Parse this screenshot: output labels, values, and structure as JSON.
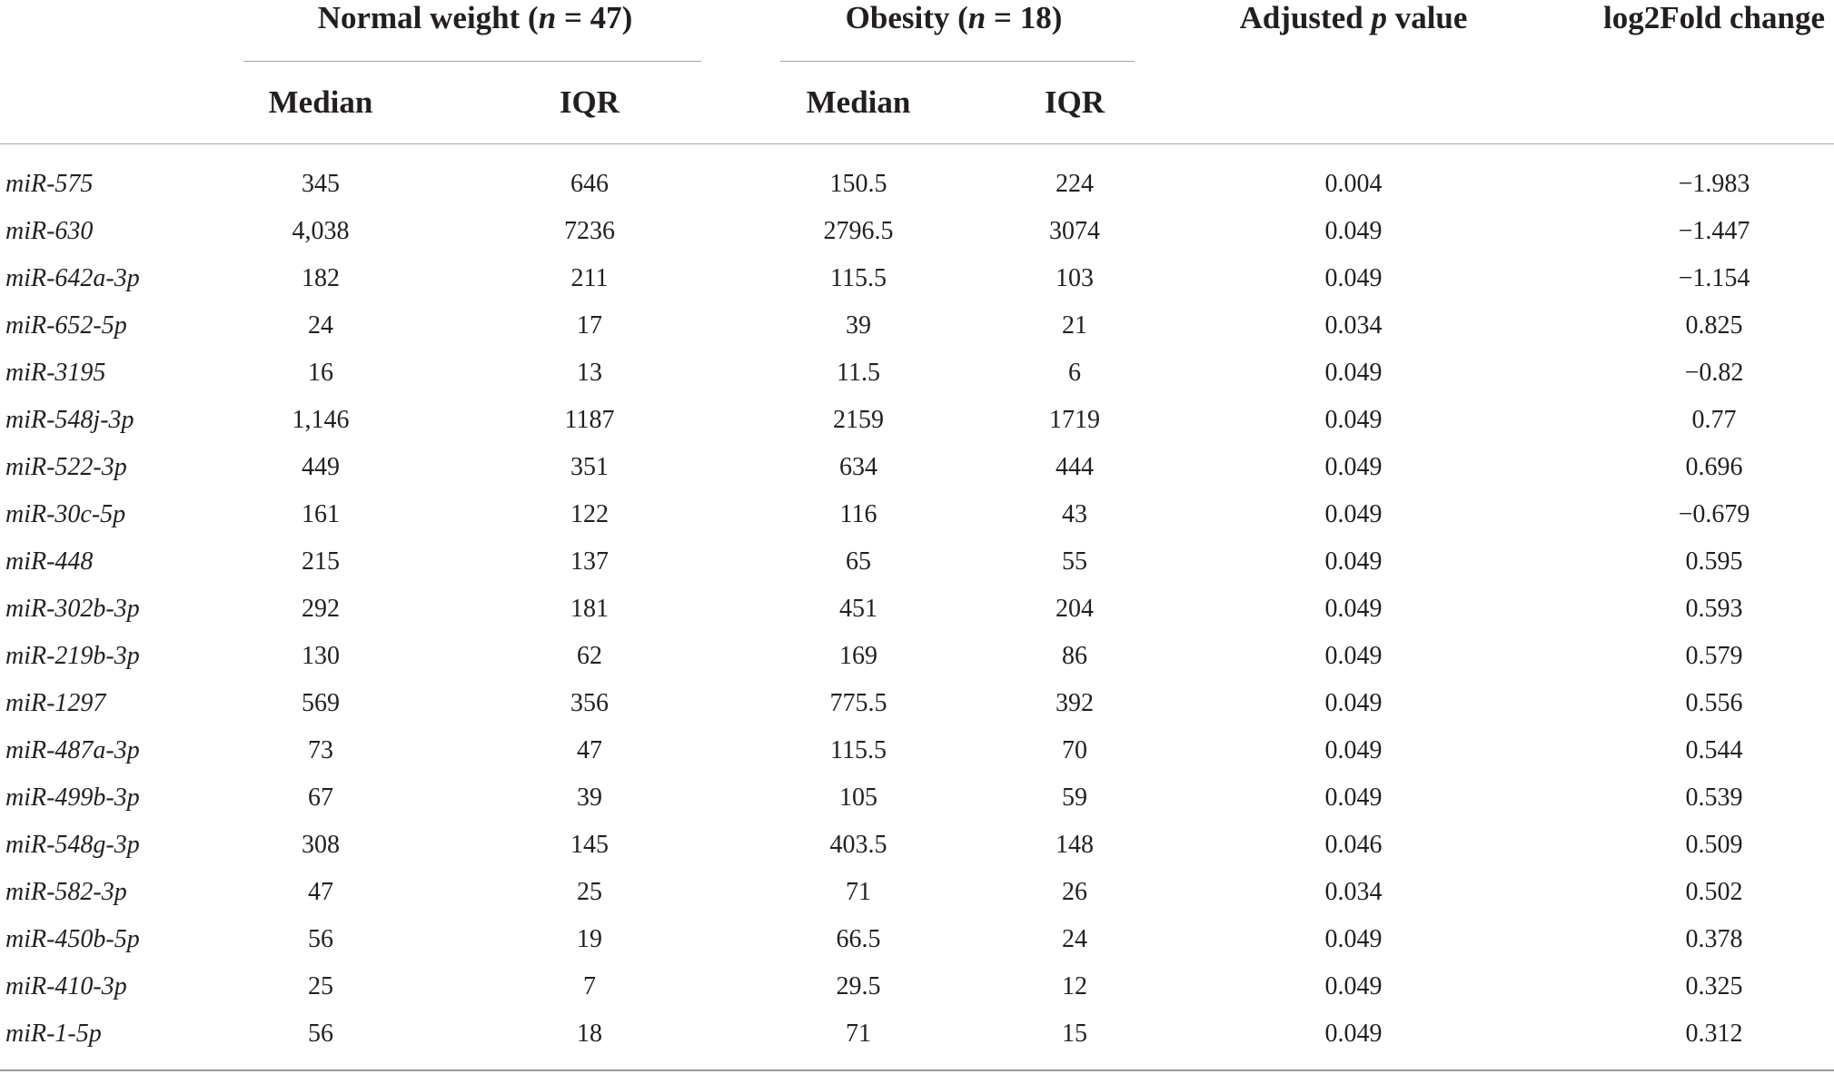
{
  "table": {
    "group_headers": {
      "normal_weight": {
        "label": "Normal weight (",
        "n_symbol": "n",
        "rest": " = 47)"
      },
      "obesity": {
        "label": "Obesity (",
        "n_symbol": "n",
        "rest": " = 18)"
      },
      "adjusted_p": {
        "label": "Adjusted ",
        "p_symbol": "p",
        "rest": " value"
      },
      "log2fold": {
        "label": "log2Fold change"
      }
    },
    "sub_headers": {
      "nw_median": "Median",
      "nw_iqr": "IQR",
      "ob_median": "Median",
      "ob_iqr": "IQR"
    },
    "rows": [
      {
        "name": "miR-575",
        "nw_median": "345",
        "nw_iqr": "646",
        "ob_median": "150.5",
        "ob_iqr": "224",
        "p": "0.004",
        "fold": "−1.983"
      },
      {
        "name": "miR-630",
        "nw_median": "4,038",
        "nw_iqr": "7236",
        "ob_median": "2796.5",
        "ob_iqr": "3074",
        "p": "0.049",
        "fold": "−1.447"
      },
      {
        "name": "miR-642a-3p",
        "nw_median": "182",
        "nw_iqr": "211",
        "ob_median": "115.5",
        "ob_iqr": "103",
        "p": "0.049",
        "fold": "−1.154"
      },
      {
        "name": "miR-652-5p",
        "nw_median": "24",
        "nw_iqr": "17",
        "ob_median": "39",
        "ob_iqr": "21",
        "p": "0.034",
        "fold": "0.825"
      },
      {
        "name": "miR-3195",
        "nw_median": "16",
        "nw_iqr": "13",
        "ob_median": "11.5",
        "ob_iqr": "6",
        "p": "0.049",
        "fold": "−0.82"
      },
      {
        "name": "miR-548j-3p",
        "nw_median": "1,146",
        "nw_iqr": "1187",
        "ob_median": "2159",
        "ob_iqr": "1719",
        "p": "0.049",
        "fold": "0.77"
      },
      {
        "name": "miR-522-3p",
        "nw_median": "449",
        "nw_iqr": "351",
        "ob_median": "634",
        "ob_iqr": "444",
        "p": "0.049",
        "fold": "0.696"
      },
      {
        "name": "miR-30c-5p",
        "nw_median": "161",
        "nw_iqr": "122",
        "ob_median": "116",
        "ob_iqr": "43",
        "p": "0.049",
        "fold": "−0.679"
      },
      {
        "name": "miR-448",
        "nw_median": "215",
        "nw_iqr": "137",
        "ob_median": "65",
        "ob_iqr": "55",
        "p": "0.049",
        "fold": "0.595"
      },
      {
        "name": "miR-302b-3p",
        "nw_median": "292",
        "nw_iqr": "181",
        "ob_median": "451",
        "ob_iqr": "204",
        "p": "0.049",
        "fold": "0.593"
      },
      {
        "name": "miR-219b-3p",
        "nw_median": "130",
        "nw_iqr": "62",
        "ob_median": "169",
        "ob_iqr": "86",
        "p": "0.049",
        "fold": "0.579"
      },
      {
        "name": "miR-1297",
        "nw_median": "569",
        "nw_iqr": "356",
        "ob_median": "775.5",
        "ob_iqr": "392",
        "p": "0.049",
        "fold": "0.556"
      },
      {
        "name": "miR-487a-3p",
        "nw_median": "73",
        "nw_iqr": "47",
        "ob_median": "115.5",
        "ob_iqr": "70",
        "p": "0.049",
        "fold": "0.544"
      },
      {
        "name": "miR-499b-3p",
        "nw_median": "67",
        "nw_iqr": "39",
        "ob_median": "105",
        "ob_iqr": "59",
        "p": "0.049",
        "fold": "0.539"
      },
      {
        "name": "miR-548g-3p",
        "nw_median": "308",
        "nw_iqr": "145",
        "ob_median": "403.5",
        "ob_iqr": "148",
        "p": "0.046",
        "fold": "0.509"
      },
      {
        "name": "miR-582-3p",
        "nw_median": "47",
        "nw_iqr": "25",
        "ob_median": "71",
        "ob_iqr": "26",
        "p": "0.034",
        "fold": "0.502"
      },
      {
        "name": "miR-450b-5p",
        "nw_median": "56",
        "nw_iqr": "19",
        "ob_median": "66.5",
        "ob_iqr": "24",
        "p": "0.049",
        "fold": "0.378"
      },
      {
        "name": "miR-410-3p",
        "nw_median": "25",
        "nw_iqr": "7",
        "ob_median": "29.5",
        "ob_iqr": "12",
        "p": "0.049",
        "fold": "0.325"
      },
      {
        "name": "miR-1-5p",
        "nw_median": "56",
        "nw_iqr": "18",
        "ob_median": "71",
        "ob_iqr": "15",
        "p": "0.049",
        "fold": "0.312"
      }
    ]
  }
}
